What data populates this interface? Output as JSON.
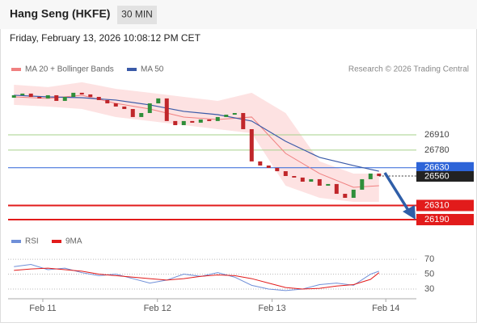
{
  "header": {
    "title": "Hang Seng (HKFE)",
    "timeframe": "30 MIN",
    "date": "Friday, February 13, 2026 10:08:12 PM CET"
  },
  "chart_data": [
    {
      "type": "candlestick",
      "credit": "Research © 2026 Trading Central",
      "xlim": [
        0,
        47.9
      ],
      "ylim": [
        26100,
        27400
      ],
      "open": [
        27225,
        27246,
        27260,
        27232,
        27219,
        27246,
        27198,
        27232,
        27267,
        27253,
        27232,
        27205,
        27177,
        27150,
        27129,
        27061,
        27095,
        27177,
        27219,
        27027,
        26992,
        27027,
        27013,
        27040,
        27027,
        27061,
        27081,
        27095,
        26958,
        26684,
        26649,
        26629,
        26601,
        26560,
        26547,
        26512,
        26533,
        26478,
        26492,
        26409,
        26375,
        26444,
        26533,
        26581
      ],
      "close": [
        27246,
        27260,
        27232,
        27219,
        27246,
        27198,
        27232,
        27267,
        27253,
        27232,
        27205,
        27177,
        27150,
        27129,
        27061,
        27095,
        27177,
        27219,
        27027,
        26992,
        27027,
        27013,
        27040,
        27027,
        27061,
        27081,
        27095,
        26958,
        26684,
        26649,
        26629,
        26601,
        26560,
        26547,
        26512,
        26533,
        26478,
        26492,
        26409,
        26375,
        26444,
        26533,
        26581,
        26560
      ],
      "up_color": "#2f8f3a",
      "down_color": "#c0262a",
      "series": [
        {
          "name": "MA 20 + Bollinger Bands",
          "color": "#f08080",
          "band_color": "#fde2e2",
          "x": [
            0.5,
            4.5,
            8.5,
            12.5,
            16.5,
            20.5,
            24.5,
            28.5,
            32.5,
            36.5,
            40.5,
            43.5
          ],
          "values": [
            27232,
            27219,
            27246,
            27177,
            27129,
            27061,
            27040,
            27061,
            26752,
            26581,
            26464,
            26478
          ],
          "upper": [
            27335,
            27315,
            27356,
            27301,
            27267,
            27232,
            27198,
            27267,
            27095,
            26684,
            26581,
            26581
          ],
          "lower": [
            27164,
            27150,
            27129,
            27061,
            27027,
            26992,
            26958,
            26924,
            26478,
            26375,
            26341,
            26341
          ]
        },
        {
          "name": "MA 50",
          "color": "#3a5aa8",
          "x": [
            0.5,
            4.5,
            8.5,
            12.5,
            16.5,
            20.5,
            24.5,
            28.5,
            32.5,
            36.5,
            40.5,
            43.5
          ],
          "values": [
            27246,
            27232,
            27225,
            27205,
            27164,
            27109,
            27081,
            27027,
            26855,
            26718,
            26649,
            26601
          ]
        }
      ],
      "levels": [
        {
          "value": 26910,
          "color": "#a6d08a"
        },
        {
          "value": 26780,
          "color": "#a6d08a"
        },
        {
          "value": 26630,
          "color": "#2d64d8"
        },
        {
          "value": 26310,
          "color": "#e21b1b"
        },
        {
          "value": 26190,
          "color": "#e21b1b"
        }
      ],
      "last_price": 26560
    },
    {
      "type": "line",
      "xlim": [
        0,
        47.9
      ],
      "ylim": [
        17,
        82
      ],
      "yticks": [
        30,
        50,
        70
      ],
      "xticks": [
        {
          "value": 3.9,
          "label": "Feb 11"
        },
        {
          "value": 17.4,
          "label": "Feb 12"
        },
        {
          "value": 30.9,
          "label": "Feb 13"
        },
        {
          "value": 44.3,
          "label": "Feb 14"
        }
      ],
      "series": [
        {
          "name": "RSI",
          "color": "#6f8fd8",
          "x": [
            0.5,
            2.5,
            4.5,
            6.5,
            8.5,
            10.5,
            12.5,
            14.5,
            16.5,
            18.5,
            20.5,
            22.5,
            24.5,
            26.5,
            28.5,
            30.5,
            32.5,
            34.5,
            36.5,
            38.5,
            40.5,
            42.5,
            43.5
          ],
          "values": [
            60,
            63,
            56,
            58,
            52,
            48,
            50,
            44,
            38,
            42,
            50,
            47,
            52,
            46,
            35,
            30,
            28,
            30,
            36,
            38,
            35,
            50,
            54
          ]
        },
        {
          "name": "9MA",
          "color": "#e21b1b",
          "x": [
            0.5,
            2.5,
            4.5,
            6.5,
            8.5,
            10.5,
            12.5,
            14.5,
            16.5,
            18.5,
            20.5,
            22.5,
            24.5,
            26.5,
            28.5,
            30.5,
            32.5,
            34.5,
            36.5,
            38.5,
            40.5,
            42.5,
            43.5
          ],
          "values": [
            55,
            57,
            58,
            56,
            54,
            50,
            48,
            46,
            44,
            42,
            44,
            47,
            49,
            48,
            44,
            38,
            32,
            30,
            31,
            34,
            36,
            43,
            52
          ]
        }
      ]
    }
  ]
}
